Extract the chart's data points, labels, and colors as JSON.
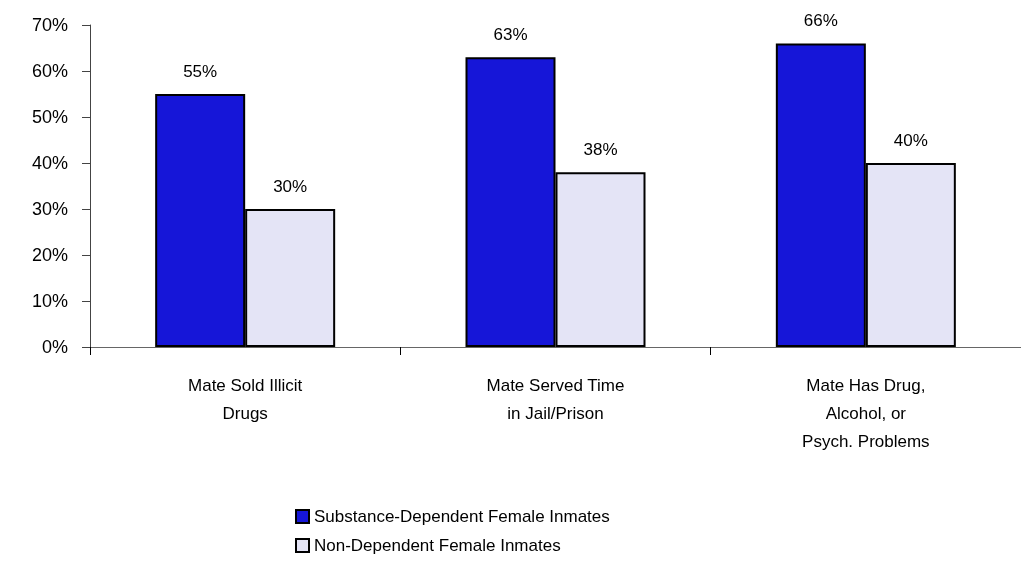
{
  "chart_data": {
    "type": "bar",
    "categories": [
      "Mate Sold Illicit\nDrugs",
      "Mate Served Time\nin Jail/Prison",
      "Mate Has Drug,\nAlcohol, or\nPsych. Problems"
    ],
    "series": [
      {
        "name": "Substance-Dependent Female Inmates",
        "color": "#1616d8",
        "values": [
          55,
          63,
          66
        ],
        "value_labels": [
          "55%",
          "63%",
          "66%"
        ]
      },
      {
        "name": "Non-Dependent Female Inmates",
        "color": "#e4e4f6",
        "values": [
          30,
          38,
          40
        ],
        "value_labels": [
          "30%",
          "38%",
          "40%"
        ]
      }
    ],
    "ylim": [
      0,
      70
    ],
    "yticks": [
      {
        "value": 0,
        "label": "0%"
      },
      {
        "value": 10,
        "label": "10%"
      },
      {
        "value": 20,
        "label": "20%"
      },
      {
        "value": 30,
        "label": "30%"
      },
      {
        "value": 40,
        "label": "40%"
      },
      {
        "value": 50,
        "label": "50%"
      },
      {
        "value": 60,
        "label": "60%"
      },
      {
        "value": 70,
        "label": "70%"
      }
    ],
    "grid": false,
    "legend": "bottom"
  }
}
